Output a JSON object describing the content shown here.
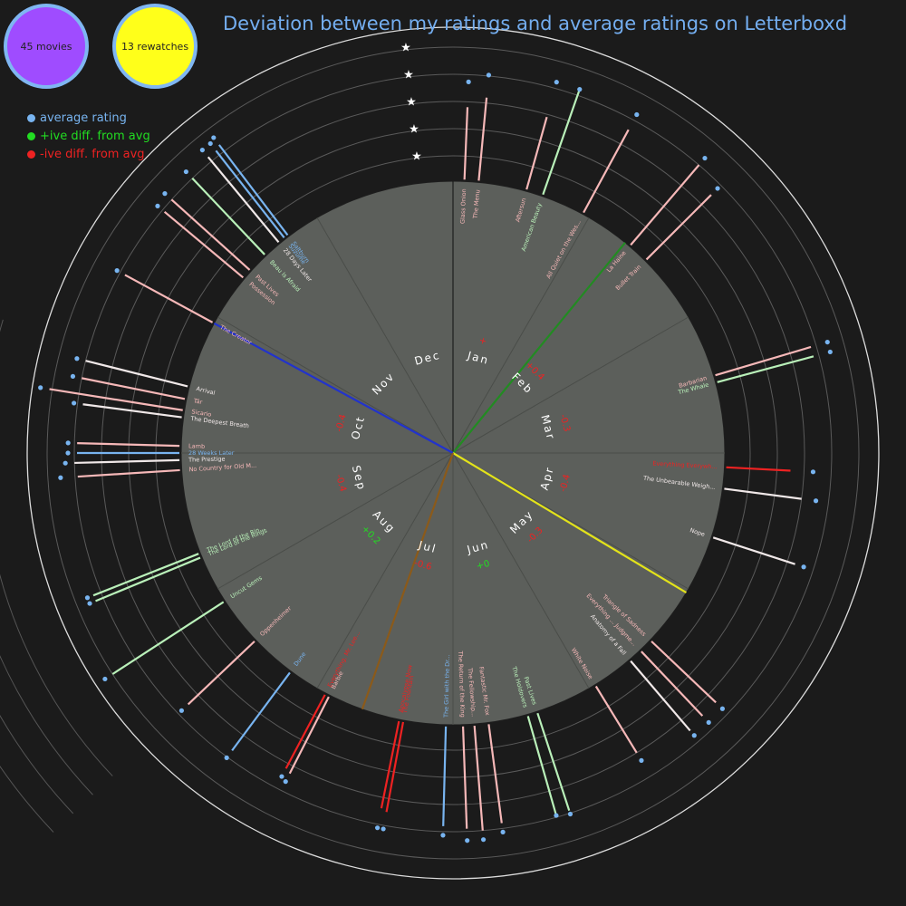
{
  "summary": {
    "movies": "45 movies",
    "rewatches": "13 rewatches",
    "movies_color": "#9f4cff",
    "rewatches_color": "#ffff1a"
  },
  "title": "Deviation between my ratings and average ratings on Letterboxd",
  "legend": {
    "items": [
      {
        "label": "average rating",
        "color": "#78b4f0"
      },
      {
        "label": "+ive diff. from avg",
        "color": "#22dd22"
      },
      {
        "label": "-ive diff. from avg",
        "color": "#ee2222"
      }
    ]
  },
  "colors": {
    "average": "#78b4f0",
    "positive": "#b9f0b9",
    "negative": "#f6b8b8",
    "strong_negative": "#ee2222",
    "neutral_line": "#f0e8e8",
    "month_positive": "#22dd22",
    "month_negative": "#ee2222"
  },
  "chart_data": {
    "type": "radial",
    "rating_scale_stars": [
      "★",
      "★",
      "★",
      "★",
      "★"
    ],
    "months": [
      {
        "label": "Jan",
        "diff": "+",
        "diff_kind": "negative"
      },
      {
        "label": "Feb",
        "diff": "+0.4",
        "diff_kind": "negative"
      },
      {
        "label": "Mar",
        "diff": "-0.3",
        "diff_kind": "negative"
      },
      {
        "label": "Apr",
        "diff": "-0.4",
        "diff_kind": "negative"
      },
      {
        "label": "May",
        "diff": "-0.3",
        "diff_kind": "negative"
      },
      {
        "label": "Jun",
        "diff": "+0",
        "diff_kind": "positive"
      },
      {
        "label": "Jul",
        "diff": "-0.6",
        "diff_kind": "negative"
      },
      {
        "label": "Aug",
        "diff": "+0.2",
        "diff_kind": "positive"
      },
      {
        "label": "Sep",
        "diff": "-0.4",
        "diff_kind": "negative"
      },
      {
        "label": "Oct",
        "diff": "-0.4",
        "diff_kind": "negative"
      },
      {
        "label": "Nov",
        "diff": "",
        "diff_kind": "negative"
      },
      {
        "label": "Dec",
        "diff": "",
        "diff_kind": "negative"
      }
    ],
    "hands": [
      {
        "color": "#228b22",
        "month_pos": 1.31
      },
      {
        "color": "#e3e31a",
        "month_pos": 4.03
      },
      {
        "color": "#2233cc",
        "month_pos": 9.95
      },
      {
        "color": "#8b5a1a",
        "month_pos": 6.65
      }
    ],
    "movies": [
      {
        "title": "Glass Onion",
        "month_pos": 0.08,
        "mine": 2.8,
        "avg": 3.4,
        "kind": "neg"
      },
      {
        "title": "The Menu",
        "month_pos": 0.18,
        "mine": 3.2,
        "avg": 3.7,
        "kind": "neg"
      },
      {
        "title": "Aftersun",
        "month_pos": 0.52,
        "mine": 2.9,
        "avg": 3.9,
        "kind": "neg"
      },
      {
        "title": "American Beauty",
        "month_pos": 0.64,
        "mine": 4.3,
        "avg": 3.9,
        "kind": "pos"
      },
      {
        "title": "All Quiet on the Wes...",
        "month_pos": 0.95,
        "mine": 3.6,
        "avg": 3.9,
        "kind": "neg"
      },
      {
        "title": "La Haine",
        "month_pos": 1.35,
        "mine": 4.0,
        "avg": 4.0,
        "kind": "neg"
      },
      {
        "title": "Bullet Train",
        "month_pos": 1.5,
        "mine": 3.5,
        "avg": 3.5,
        "kind": "neg"
      },
      {
        "title": "Barbarian",
        "month_pos": 2.45,
        "mine": 3.8,
        "avg": 4.1,
        "kind": "neg"
      },
      {
        "title": "The Whale",
        "month_pos": 2.5,
        "mine": 3.8,
        "avg": 4.1,
        "kind": "pos"
      },
      {
        "title": "Everything Everywh...",
        "month_pos": 3.1,
        "mine": 2.5,
        "avg": 3.0,
        "kind": "strong"
      },
      {
        "title": "The Unbearable Weigh...",
        "month_pos": 3.25,
        "mine": 3.0,
        "avg": 3.2,
        "kind": "neutral"
      },
      {
        "title": "Nope",
        "month_pos": 3.6,
        "mine": 3.3,
        "avg": 3.3,
        "kind": "neutral"
      },
      {
        "title": "Triangle of Sadness",
        "month_pos": 4.45,
        "mine": 3.4,
        "avg": 3.4,
        "kind": "neg"
      },
      {
        "title": "Everything ... Judgme...",
        "month_pos": 4.55,
        "mine": 3.4,
        "avg": 3.4,
        "kind": "neg"
      },
      {
        "title": "Anatomy of a Fall",
        "month_pos": 4.65,
        "mine": 3.5,
        "avg": 3.4,
        "kind": "neutral"
      },
      {
        "title": "White Noise",
        "month_pos": 4.95,
        "mine": 3.0,
        "avg": 3.0,
        "kind": "neg"
      },
      {
        "title": "Past Lives",
        "month_pos": 5.4,
        "mine": 3.9,
        "avg": 3.7,
        "kind": "pos"
      },
      {
        "title": "The Holdovers",
        "month_pos": 5.47,
        "mine": 3.9,
        "avg": 3.6,
        "kind": "pos"
      },
      {
        "title": "Fantastic Mr. Fox",
        "month_pos": 5.75,
        "mine": 3.8,
        "avg": 3.8,
        "kind": "neg"
      },
      {
        "title": "The Fellowship...",
        "month_pos": 5.85,
        "mine": 4.0,
        "avg": 4.0,
        "kind": "neg"
      },
      {
        "title": "The Return of the King",
        "month_pos": 5.93,
        "mine": 3.9,
        "avg": 4.0,
        "kind": "neg"
      },
      {
        "title": "The Girl with the Dr...",
        "month_pos": 6.05,
        "mine": 3.8,
        "avg": 3.8,
        "kind": "avg"
      },
      {
        "title": "The Fountain",
        "month_pos": 6.35,
        "mine": 3.5,
        "avg": 3.8,
        "kind": "strong"
      },
      {
        "title": "Apocalypse Now",
        "month_pos": 6.38,
        "mine": 3.4,
        "avg": 3.8,
        "kind": "strong"
      },
      {
        "title": "Barbie",
        "month_pos": 6.9,
        "mine": 3.3,
        "avg": 3.3,
        "kind": "neg"
      },
      {
        "title": "Everything, Mr. Lee...",
        "month_pos": 6.93,
        "mine": 3.2,
        "avg": 3.2,
        "kind": "strong"
      },
      {
        "title": "Dune",
        "month_pos": 7.22,
        "mine": 3.7,
        "avg": 3.7,
        "kind": "avg"
      },
      {
        "title": "Oppenheimer",
        "month_pos": 7.55,
        "mine": 3.5,
        "avg": 3.5,
        "kind": "neg"
      },
      {
        "title": "The Lord of the Rings",
        "month_pos": 8.25,
        "mine": 4.3,
        "avg": 4.2,
        "kind": "pos"
      },
      {
        "title": "The Lord of the Rin...",
        "month_pos": 8.28,
        "mine": 4.3,
        "avg": 4.2,
        "kind": "pos"
      },
      {
        "title": "No Country for Old M...",
        "month_pos": 8.88,
        "mine": 3.9,
        "avg": 4.2,
        "kind": "neg"
      },
      {
        "title": "The Prestige",
        "month_pos": 8.95,
        "mine": 4.0,
        "avg": 4.0,
        "kind": "neutral"
      },
      {
        "title": "28 Weeks Later",
        "month_pos": 9.0,
        "mine": 3.9,
        "avg": 3.9,
        "kind": "avg"
      },
      {
        "title": "Lamb",
        "month_pos": 9.05,
        "mine": 3.9,
        "avg": 3.9,
        "kind": "neg"
      },
      {
        "title": "The Deepest Breath",
        "month_pos": 9.25,
        "mine": 3.8,
        "avg": 3.8,
        "kind": "neutral"
      },
      {
        "title": "Tár",
        "month_pos": 9.38,
        "mine": 4.0,
        "avg": 4.0,
        "kind": "neg"
      },
      {
        "title": "Arrival",
        "month_pos": 9.47,
        "mine": 4.0,
        "avg": 4.0,
        "kind": "neutral"
      },
      {
        "title": "The Creator",
        "month_pos": 9.95,
        "mine": 3.8,
        "avg": 3.8,
        "kind": "neg"
      },
      {
        "title": "Possession",
        "month_pos": 10.33,
        "mine": 3.9,
        "avg": 3.9,
        "kind": "neg"
      },
      {
        "title": "Past Lives",
        "month_pos": 10.4,
        "mine": 4.0,
        "avg": 4.0,
        "kind": "neg"
      },
      {
        "title": "Beau Is Afraid",
        "month_pos": 10.55,
        "mine": 4.0,
        "avg": 4.0,
        "kind": "pos"
      },
      {
        "title": "28 Days Later",
        "month_pos": 10.68,
        "mine": 4.2,
        "avg": 4.2,
        "kind": "neutral"
      },
      {
        "title": "Suzume",
        "month_pos": 10.73,
        "mine": 4.2,
        "avg": 4.2,
        "kind": "avg"
      },
      {
        "title": "Saltburn",
        "month_pos": 10.76,
        "mine": 4.3,
        "avg": 4.3,
        "kind": "avg"
      },
      {
        "title": "Sicario",
        "month_pos": 9.3,
        "mine": 5.1,
        "avg": 5.1,
        "kind": "neg"
      },
      {
        "title": "Uncut Gems",
        "month_pos": 7.9,
        "mine": 5.0,
        "avg": 5.0,
        "kind": "pos"
      }
    ]
  }
}
